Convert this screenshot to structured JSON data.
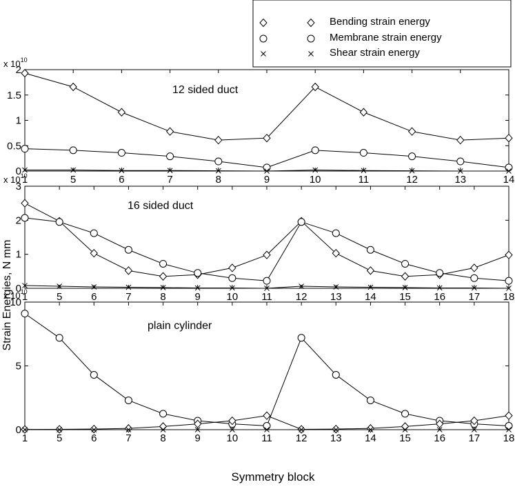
{
  "figure": {
    "ylabel": "Strain Energies, N mm",
    "xlabel": "Symmetry block"
  },
  "legend": {
    "placement": "top-right",
    "entries": [
      {
        "label": "Bending strain energy",
        "marker": "diamond"
      },
      {
        "label": "Membrane strain energy",
        "marker": "circle"
      },
      {
        "label": "Shear strain energy",
        "marker": "cross"
      }
    ]
  },
  "chart_data": [
    {
      "type": "line",
      "title": "12 sided duct",
      "exponent_label": "x 10",
      "exponent_power": "10",
      "categories": [
        "1",
        "5",
        "6",
        "7",
        "8",
        "9",
        "10",
        "11",
        "12",
        "13",
        "14"
      ],
      "ylim": [
        0,
        2
      ],
      "yticks": [
        "0",
        "0.5",
        "1",
        "1.5",
        "2"
      ],
      "series": [
        {
          "name": "Bending strain energy",
          "marker": "diamond",
          "values": [
            1.93,
            1.66,
            1.16,
            0.78,
            0.61,
            0.65,
            1.66,
            1.16,
            0.78,
            0.61,
            0.65
          ]
        },
        {
          "name": "Membrane strain energy",
          "marker": "circle",
          "values": [
            0.44,
            0.41,
            0.36,
            0.29,
            0.19,
            0.07,
            0.41,
            0.36,
            0.29,
            0.19,
            0.07
          ]
        },
        {
          "name": "Shear strain energy",
          "marker": "cross",
          "values": [
            0.02,
            0.02,
            0.01,
            0.01,
            0.005,
            0.0,
            0.02,
            0.01,
            0.005,
            0.0,
            0.0
          ]
        }
      ]
    },
    {
      "type": "line",
      "title": "16 sided duct",
      "exponent_label": "x 10",
      "exponent_power": "10",
      "categories": [
        "1",
        "5",
        "6",
        "7",
        "8",
        "9",
        "10",
        "11",
        "12",
        "13",
        "14",
        "15",
        "16",
        "17",
        "18"
      ],
      "ylim": [
        0,
        3
      ],
      "yticks": [
        "0",
        "1",
        "2",
        "3"
      ],
      "series": [
        {
          "name": "Bending strain energy",
          "marker": "diamond",
          "values": [
            2.5,
            1.97,
            1.03,
            0.52,
            0.35,
            0.4,
            0.6,
            0.98,
            1.97,
            1.03,
            0.52,
            0.35,
            0.4,
            0.6,
            0.98
          ]
        },
        {
          "name": "Membrane strain energy",
          "marker": "circle",
          "values": [
            2.07,
            1.95,
            1.62,
            1.13,
            0.72,
            0.45,
            0.3,
            0.22,
            1.95,
            1.62,
            1.13,
            0.72,
            0.45,
            0.3,
            0.22
          ]
        },
        {
          "name": "Shear strain energy",
          "marker": "cross",
          "values": [
            0.08,
            0.06,
            0.04,
            0.03,
            0.02,
            0.01,
            0.01,
            0.0,
            0.06,
            0.04,
            0.03,
            0.02,
            0.01,
            0.01,
            0.0
          ]
        }
      ]
    },
    {
      "type": "line",
      "title": "plain cylinder",
      "exponent_label": "x 10",
      "exponent_power": "10",
      "categories": [
        "1",
        "5",
        "6",
        "7",
        "8",
        "9",
        "10",
        "11",
        "12",
        "13",
        "14",
        "15",
        "16",
        "17",
        "18"
      ],
      "ylim": [
        0,
        10
      ],
      "yticks": [
        "0",
        "5",
        "10"
      ],
      "series": [
        {
          "name": "Membrane strain energy",
          "marker": "circle",
          "values": [
            9.1,
            7.2,
            4.3,
            2.3,
            1.25,
            0.7,
            0.45,
            0.3,
            7.2,
            4.3,
            2.3,
            1.25,
            0.7,
            0.45,
            0.3
          ]
        },
        {
          "name": "Bending strain energy",
          "marker": "diamond",
          "values": [
            0.02,
            0.03,
            0.05,
            0.1,
            0.25,
            0.45,
            0.7,
            1.1,
            0.03,
            0.05,
            0.1,
            0.25,
            0.45,
            0.7,
            1.1
          ]
        },
        {
          "name": "Shear strain energy",
          "marker": "cross",
          "values": [
            0.0,
            0.0,
            0.0,
            0.0,
            0.0,
            0.0,
            0.0,
            0.0,
            0.0,
            0.0,
            0.0,
            0.0,
            0.0,
            0.0,
            0.0
          ]
        }
      ]
    }
  ]
}
